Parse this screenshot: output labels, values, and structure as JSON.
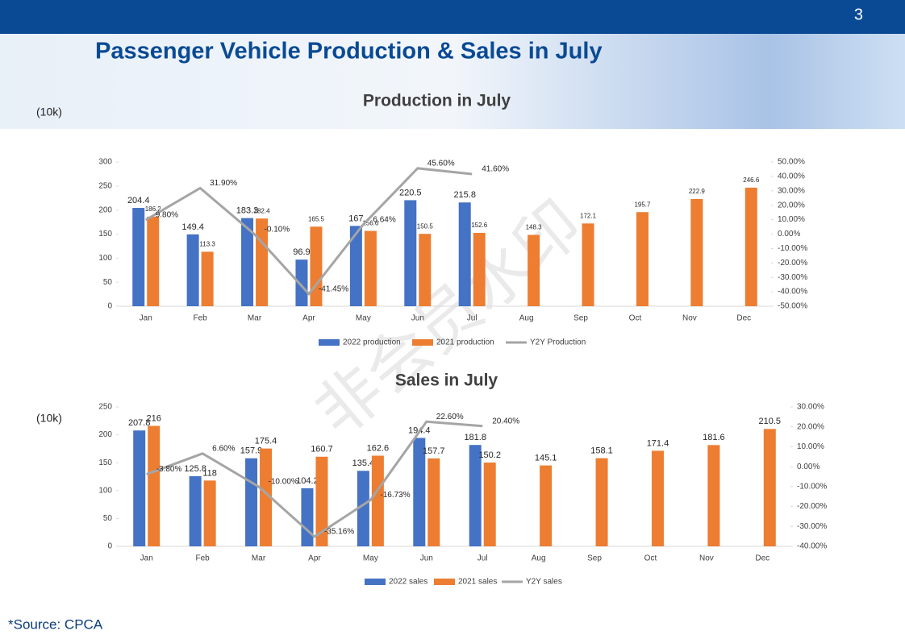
{
  "page_number": "3",
  "title": "Passenger Vehicle Production & Sales in July",
  "source": "*Source:  CPCA",
  "watermark": "非会员水印",
  "chart_data": [
    {
      "type": "bar",
      "title": "Production in July",
      "unit_label": "(10k)",
      "categories": [
        "Jan",
        "Feb",
        "Mar",
        "Apr",
        "May",
        "Jun",
        "Jul",
        "Aug",
        "Sep",
        "Oct",
        "Nov",
        "Dec"
      ],
      "series": [
        {
          "name": "2022 production",
          "color": "#4472c4",
          "values": [
            204.4,
            149.4,
            183.3,
            96.9,
            167,
            220.5,
            215.8,
            null,
            null,
            null,
            null,
            null
          ]
        },
        {
          "name": "2021 production",
          "color": "#ed7d31",
          "values": [
            186.2,
            113.3,
            182.4,
            165.5,
            156.6,
            150.5,
            152.6,
            148.3,
            172.1,
            195.7,
            222.9,
            246.6
          ]
        },
        {
          "name": "Y2Y Production",
          "color": "#a5a5a5",
          "type": "line",
          "axis": "y2",
          "values": [
            9.8,
            31.9,
            -0.1,
            -41.45,
            6.64,
            45.6,
            41.6,
            null,
            null,
            null,
            null,
            null
          ],
          "value_labels": [
            "9.80%",
            "31.90%",
            "-0.10%",
            "-41.45%",
            "6.64%",
            "45.60%",
            "41.60%",
            null,
            null,
            null,
            null,
            null
          ]
        }
      ],
      "ylim": [
        0,
        300
      ],
      "yticks": [
        0,
        50,
        100,
        150,
        200,
        250,
        300
      ],
      "y2lim": [
        -50,
        50
      ],
      "y2ticks": [
        {
          "value": -50,
          "label": "-50.00%"
        },
        {
          "value": -40,
          "label": "-40.00%"
        },
        {
          "value": -30,
          "label": "-30.00%"
        },
        {
          "value": -20,
          "label": "-20.00%"
        },
        {
          "value": -10,
          "label": "-10.00%"
        },
        {
          "value": 0,
          "label": "0.00%"
        },
        {
          "value": 10,
          "label": "10.00%"
        },
        {
          "value": 20,
          "label": "20.00%"
        },
        {
          "value": 30,
          "label": "30.00%"
        },
        {
          "value": 40,
          "label": "40.00%"
        },
        {
          "value": 50,
          "label": "50.00%"
        }
      ],
      "legend": "bottom"
    },
    {
      "type": "bar",
      "title": "Sales in July",
      "unit_label": "(10k)",
      "categories": [
        "Jan",
        "Feb",
        "Mar",
        "Apr",
        "May",
        "Jun",
        "Jul",
        "Aug",
        "Sep",
        "Oct",
        "Nov",
        "Dec"
      ],
      "series": [
        {
          "name": "2022 sales",
          "color": "#4472c4",
          "values": [
            207.8,
            125.8,
            157.9,
            104.2,
            135.4,
            194.4,
            181.8,
            null,
            null,
            null,
            null,
            null
          ]
        },
        {
          "name": "2021 sales",
          "color": "#ed7d31",
          "values": [
            216,
            118,
            175.4,
            160.7,
            162.6,
            157.7,
            150.2,
            145.1,
            158.1,
            171.4,
            181.6,
            210.5
          ]
        },
        {
          "name": "Y2Y sales",
          "color": "#a5a5a5",
          "type": "line",
          "axis": "y2",
          "values": [
            -3.8,
            6.6,
            -10,
            -35.16,
            -16.73,
            22.6,
            20.4,
            null,
            null,
            null,
            null,
            null
          ],
          "value_labels": [
            "-3.80%",
            "6.60%",
            "-10.00%",
            "-35.16%",
            "-16.73%",
            "22.60%",
            "20.40%",
            null,
            null,
            null,
            null,
            null
          ]
        }
      ],
      "ylim": [
        0,
        250
      ],
      "yticks": [
        0,
        50,
        100,
        150,
        200,
        250
      ],
      "y2lim": [
        -40,
        30
      ],
      "y2ticks": [
        {
          "value": -40,
          "label": "-40.00%"
        },
        {
          "value": -30,
          "label": "-30.00%"
        },
        {
          "value": -20,
          "label": "-20.00%"
        },
        {
          "value": -10,
          "label": "-10.00%"
        },
        {
          "value": 0,
          "label": "0.00%"
        },
        {
          "value": 10,
          "label": "10.00%"
        },
        {
          "value": 20,
          "label": "20.00%"
        },
        {
          "value": 30,
          "label": "30.00%"
        }
      ],
      "legend": "bottom"
    }
  ]
}
